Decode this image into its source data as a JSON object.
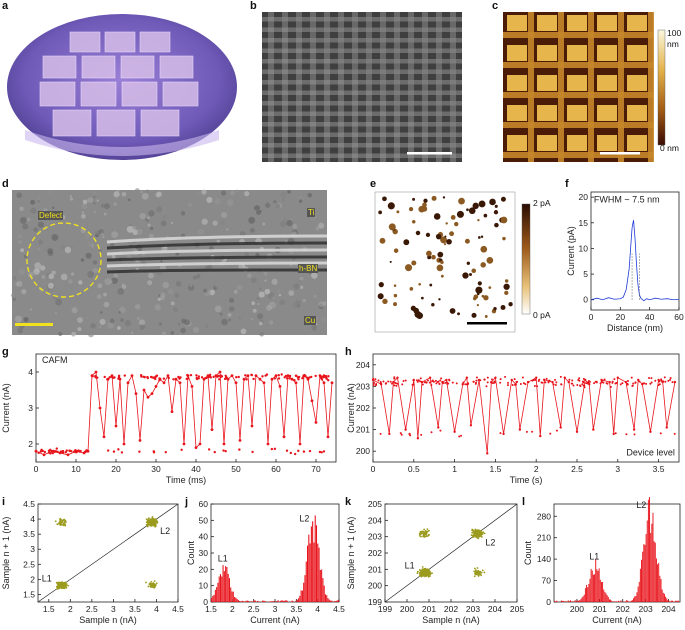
{
  "panels": {
    "a": {
      "letter": "a"
    },
    "b": {
      "letter": "b"
    },
    "c": {
      "letter": "c",
      "colorbar_max": "100",
      "colorbar_unit": "nm",
      "colorbar_min": "0 nm"
    },
    "d": {
      "letter": "d",
      "labels": {
        "defect": "Defect",
        "top": "Ti",
        "film": "h-BN",
        "bottom": "Cu"
      }
    },
    "e": {
      "letter": "e",
      "colorbar_max": "2 pA",
      "colorbar_min": "0 pA"
    },
    "f": {
      "letter": "f",
      "annotation": "FWHM ~ 7.5 nm"
    },
    "g": {
      "letter": "g",
      "annotation": "CAFM"
    },
    "h": {
      "letter": "h",
      "annotation": "Device level"
    },
    "i": {
      "letter": "i",
      "l1": "L1",
      "l2": "L2"
    },
    "j": {
      "letter": "j",
      "l1": "L1",
      "l2": "L2"
    },
    "k": {
      "letter": "k",
      "l1": "L1",
      "l2": "L2"
    },
    "l": {
      "letter": "l",
      "l1": "L1",
      "l2": "L2"
    }
  },
  "chart_data": [
    {
      "id": "f",
      "type": "line",
      "xlabel": "Distance (nm)",
      "ylabel": "Current (pA)",
      "xlim": [
        0,
        60
      ],
      "ylim": [
        -2,
        21
      ],
      "xticks": [
        0,
        20,
        40,
        60
      ],
      "yticks": [
        0,
        5,
        10,
        15,
        20
      ],
      "x": [
        0,
        4,
        8,
        12,
        16,
        20,
        22,
        24,
        26,
        27,
        28,
        29,
        30,
        31,
        32,
        33,
        34,
        36,
        38,
        40,
        44,
        48,
        52,
        56,
        60
      ],
      "y": [
        0,
        0.3,
        0,
        0.4,
        0.1,
        0.2,
        0.5,
        2,
        6,
        10,
        14,
        15.5,
        12,
        7,
        3,
        1,
        0.3,
        -0.2,
        0.2,
        0,
        0.3,
        0.1,
        0.2,
        0,
        0.1
      ],
      "color": "#1f3bd6"
    },
    {
      "id": "g",
      "type": "line",
      "xlabel": "Time (ms)",
      "ylabel": "Current (nA)",
      "xlim": [
        0,
        75
      ],
      "ylim": [
        1.5,
        4.5
      ],
      "xticks": [
        0,
        10,
        20,
        30,
        40,
        50,
        60,
        70
      ],
      "yticks": [
        2,
        3,
        4
      ],
      "low_level": 1.8,
      "high_level": 3.85,
      "x": [
        0,
        2,
        4,
        6,
        8,
        10,
        12,
        13,
        14,
        15,
        16,
        17,
        18,
        19,
        20,
        21,
        22,
        23,
        24,
        25,
        26,
        27,
        28,
        29,
        30,
        31,
        32,
        33,
        34,
        35,
        36,
        37,
        38,
        39,
        40,
        41,
        42,
        43,
        44,
        45,
        46,
        47,
        48,
        49,
        50,
        51,
        52,
        53,
        54,
        55,
        56,
        57,
        58,
        59,
        60,
        61,
        62,
        63,
        64,
        65,
        66,
        67,
        68,
        69,
        70,
        71,
        72,
        73,
        74
      ],
      "y": [
        1.8,
        1.7,
        1.8,
        1.75,
        1.7,
        1.8,
        1.75,
        1.8,
        3.9,
        4.0,
        3.0,
        2.2,
        3.8,
        3.9,
        2.5,
        3.8,
        2.0,
        3.7,
        3.9,
        3.4,
        2.1,
        3.5,
        3.3,
        3.4,
        3.6,
        3.8,
        3.7,
        3.9,
        2.9,
        3.8,
        3.7,
        2.0,
        3.9,
        3.6,
        1.9,
        2.0,
        3.8,
        3.9,
        2.4,
        3.9,
        4.0,
        2.0,
        3.8,
        3.9,
        3.7,
        2.1,
        3.8,
        3.9,
        2.5,
        3.9,
        3.8,
        3.7,
        2.0,
        3.8,
        3.9,
        3.6,
        2.2,
        3.9,
        3.8,
        3.7,
        2.0,
        3.9,
        3.8,
        3.2,
        2.6,
        3.9,
        3.7,
        2.2,
        3.7
      ],
      "color": "#e8141c"
    },
    {
      "id": "h",
      "type": "line",
      "xlabel": "Time (s)",
      "ylabel": "Current (nA)",
      "xlim": [
        0,
        3.75
      ],
      "ylim": [
        199.5,
        204.5
      ],
      "xticks": [
        0,
        0.5,
        1.0,
        1.5,
        2.0,
        2.5,
        3.0,
        3.5
      ],
      "yticks": [
        200,
        201,
        202,
        203,
        204
      ],
      "high_level": 203.2,
      "low_level": 200.8,
      "x": [
        0,
        0.1,
        0.2,
        0.25,
        0.3,
        0.4,
        0.5,
        0.55,
        0.6,
        0.7,
        0.8,
        0.85,
        0.9,
        1.0,
        1.1,
        1.15,
        1.2,
        1.3,
        1.4,
        1.45,
        1.5,
        1.6,
        1.7,
        1.75,
        1.8,
        1.9,
        2.0,
        2.05,
        2.1,
        2.2,
        2.3,
        2.35,
        2.4,
        2.5,
        2.6,
        2.65,
        2.7,
        2.8,
        2.9,
        2.95,
        3.0,
        3.1,
        3.2,
        3.25,
        3.3,
        3.4,
        3.5,
        3.55,
        3.6,
        3.7
      ],
      "y": [
        203.3,
        203.1,
        200.8,
        203.2,
        203.4,
        201.0,
        203.3,
        200.6,
        203.2,
        203.4,
        201.1,
        203.2,
        203.3,
        200.9,
        203.1,
        203.4,
        201.2,
        203.3,
        199.9,
        203.2,
        203.4,
        200.8,
        203.3,
        203.1,
        201.0,
        203.2,
        203.4,
        200.7,
        203.3,
        203.2,
        201.1,
        203.4,
        203.2,
        200.9,
        203.3,
        203.1,
        201.0,
        203.3,
        203.2,
        200.8,
        203.4,
        203.2,
        201.0,
        203.3,
        203.1,
        200.9,
        203.3,
        203.2,
        201.1,
        203.2
      ],
      "color": "#e8141c"
    },
    {
      "id": "i",
      "type": "scatter",
      "xlabel": "Sample n (nA)",
      "ylabel": "Sample n + 1 (nA)",
      "xlim": [
        1.25,
        4.5
      ],
      "ylim": [
        1.25,
        4.5
      ],
      "xticks": [
        1.5,
        2.0,
        2.5,
        3.0,
        3.5,
        4.0,
        4.5
      ],
      "yticks": [
        1.5,
        2.0,
        2.5,
        3.0,
        3.5,
        4.0,
        4.5
      ],
      "clusters": [
        [
          1.8,
          1.8
        ],
        [
          3.9,
          3.9
        ],
        [
          1.8,
          3.9
        ],
        [
          3.9,
          1.8
        ]
      ],
      "color": "#9b9b1e"
    },
    {
      "id": "j",
      "type": "bar",
      "xlabel": "Current (nA)",
      "ylabel": "Count",
      "xlim": [
        1.5,
        4.5
      ],
      "ylim": [
        0,
        60
      ],
      "xticks": [
        1.5,
        2.0,
        2.5,
        3.0,
        3.5,
        4.0,
        4.5
      ],
      "yticks": [
        0,
        10,
        20,
        30,
        40,
        50,
        60
      ],
      "peaks": [
        {
          "center": 1.8,
          "height": 21
        },
        {
          "center": 3.9,
          "height": 48
        }
      ],
      "color": "#e8141c"
    },
    {
      "id": "k",
      "type": "scatter",
      "xlabel": "Sample n (nA)",
      "ylabel": "Sample n + 1 (nA)",
      "xlim": [
        199,
        205
      ],
      "ylim": [
        199,
        205
      ],
      "xticks": [
        199,
        200,
        201,
        202,
        203,
        204,
        205
      ],
      "yticks": [
        199,
        200,
        201,
        202,
        203,
        204,
        205
      ],
      "clusters": [
        [
          200.8,
          200.8
        ],
        [
          203.2,
          203.2
        ],
        [
          200.8,
          203.2
        ],
        [
          203.2,
          200.8
        ]
      ],
      "color": "#9b9b1e"
    },
    {
      "id": "l",
      "type": "bar",
      "xlabel": "Current (nA)",
      "ylabel": "Count",
      "xlim": [
        199,
        204.5
      ],
      "ylim": [
        0,
        320
      ],
      "xticks": [
        200,
        201,
        202,
        203,
        204
      ],
      "yticks": [
        0,
        70,
        140,
        210,
        280
      ],
      "peaks": [
        {
          "center": 200.8,
          "height": 120
        },
        {
          "center": 203.2,
          "height": 300
        }
      ],
      "color": "#e8141c"
    }
  ]
}
